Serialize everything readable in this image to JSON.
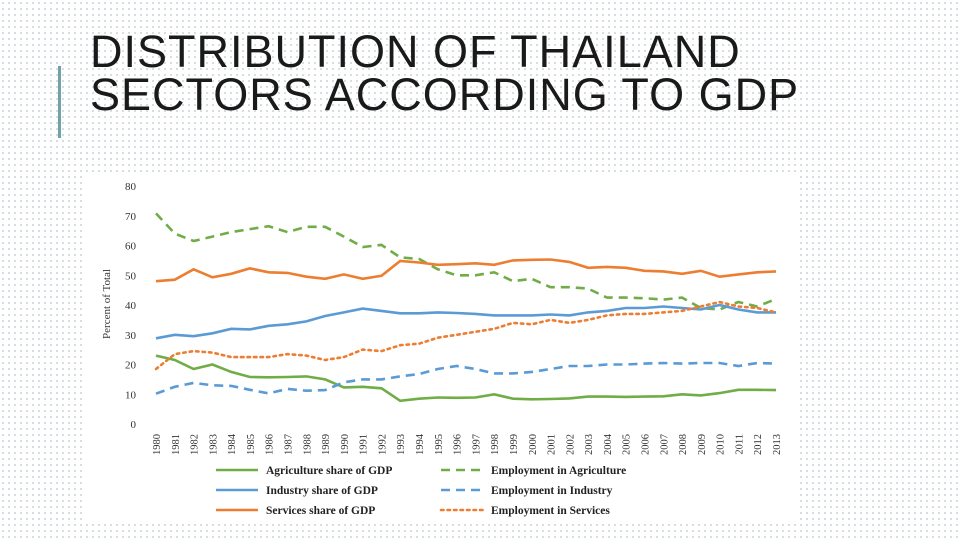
{
  "slide": {
    "title": "DISTRIBUTION OF THAILAND SECTORS ACCORDING TO GDP"
  },
  "colors": {
    "accent_bar": "#6fa3a8",
    "agriculture": "#70ad47",
    "industry": "#5b9bd5",
    "services": "#ed7d31"
  },
  "chart_data": {
    "type": "line",
    "title": "",
    "xlabel": "",
    "ylabel": "Percent of Total",
    "ylim": [
      0,
      80
    ],
    "yticks": [
      0,
      10,
      20,
      30,
      40,
      50,
      60,
      70,
      80
    ],
    "grid": false,
    "legend_position": "bottom",
    "x": [
      "1980",
      "1981",
      "1982",
      "1983",
      "1984",
      "1985",
      "1986",
      "1987",
      "1988",
      "1989",
      "1990",
      "1991",
      "1992",
      "1993",
      "1994",
      "1995",
      "1996",
      "1997",
      "1998",
      "1999",
      "2000",
      "2001",
      "2002",
      "2003",
      "2004",
      "2005",
      "2006",
      "2007",
      "2008",
      "2009",
      "2010",
      "2011",
      "2012",
      "2013"
    ],
    "series": [
      {
        "name": "Agriculture share of GDP",
        "color": "#70ad47",
        "style": "solid",
        "values": [
          23.0,
          21.5,
          18.5,
          20.0,
          17.5,
          15.8,
          15.7,
          15.8,
          16.0,
          15.0,
          12.3,
          12.5,
          12.0,
          7.8,
          8.5,
          8.9,
          8.8,
          8.9,
          10.0,
          8.5,
          8.3,
          8.4,
          8.6,
          9.2,
          9.2,
          9.1,
          9.2,
          9.3,
          10.0,
          9.6,
          10.4,
          11.5,
          11.5,
          11.4
        ]
      },
      {
        "name": "Employment in Agriculture",
        "color": "#70ad47",
        "style": "dashed",
        "values": [
          70.8,
          64.0,
          61.5,
          63.0,
          64.5,
          65.5,
          66.5,
          64.5,
          66.3,
          66.3,
          63.0,
          59.5,
          60.2,
          56.0,
          55.5,
          52.0,
          50.0,
          50.0,
          51.0,
          48.0,
          48.8,
          46.0,
          46.0,
          45.5,
          42.5,
          42.5,
          42.3,
          41.8,
          42.5,
          39.0,
          38.5,
          41.0,
          39.5,
          42.0
        ]
      },
      {
        "name": "Industry share of GDP",
        "color": "#5b9bd5",
        "style": "solid",
        "values": [
          28.8,
          30.0,
          29.5,
          30.5,
          32.0,
          31.8,
          33.0,
          33.5,
          34.5,
          36.3,
          37.5,
          38.8,
          38.0,
          37.2,
          37.2,
          37.5,
          37.3,
          37.0,
          36.5,
          36.5,
          36.5,
          36.8,
          36.5,
          37.5,
          38.0,
          39.0,
          39.0,
          39.5,
          39.0,
          38.5,
          40.0,
          38.5,
          37.5,
          37.5
        ]
      },
      {
        "name": "Employment in Industry",
        "color": "#5b9bd5",
        "style": "dashed",
        "values": [
          10.2,
          12.5,
          13.8,
          13.0,
          12.8,
          11.5,
          10.3,
          11.8,
          11.2,
          11.4,
          14.0,
          15.0,
          15.0,
          16.0,
          16.8,
          18.5,
          19.5,
          18.5,
          17.0,
          17.0,
          17.5,
          18.5,
          19.5,
          19.5,
          20.0,
          20.0,
          20.3,
          20.5,
          20.3,
          20.5,
          20.5,
          19.5,
          20.5,
          20.3
        ]
      },
      {
        "name": "Services share of GDP",
        "color": "#ed7d31",
        "style": "solid",
        "values": [
          48.0,
          48.5,
          52.0,
          49.3,
          50.5,
          52.3,
          51.0,
          50.8,
          49.5,
          48.8,
          50.3,
          48.8,
          49.8,
          54.8,
          54.3,
          53.5,
          53.7,
          54.0,
          53.5,
          55.0,
          55.2,
          55.3,
          54.5,
          52.5,
          52.8,
          52.5,
          51.5,
          51.3,
          50.5,
          51.5,
          49.5,
          50.3,
          51.0,
          51.3
        ]
      },
      {
        "name": "Employment in Services",
        "color": "#ed7d31",
        "style": "dotted",
        "values": [
          18.5,
          23.5,
          24.5,
          24.0,
          22.5,
          22.5,
          22.5,
          23.5,
          23.0,
          21.5,
          22.5,
          25.0,
          24.5,
          26.5,
          27.0,
          29.0,
          30.0,
          31.0,
          32.0,
          34.0,
          33.5,
          35.0,
          34.0,
          35.0,
          36.5,
          37.0,
          37.0,
          37.5,
          38.0,
          39.5,
          41.0,
          39.5,
          39.0,
          37.5
        ]
      }
    ]
  }
}
